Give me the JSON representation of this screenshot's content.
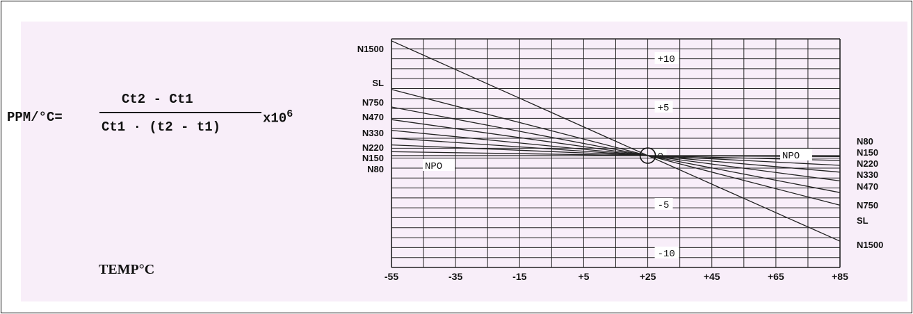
{
  "formula": {
    "lhs": "PPM/°C=",
    "numerator": "Ct2 - Ct1",
    "denominator": "Ct1 · (t2 - t1)",
    "multiplier": "x10",
    "exponent": "6"
  },
  "temp_label": "TEMP°C",
  "chart_data": {
    "type": "line",
    "x_ticks": [
      "-55",
      "-35",
      "-15",
      "+5",
      "+25",
      "+45",
      "+65",
      "+85"
    ],
    "x_tick_values": [
      -55,
      -35,
      -15,
      5,
      25,
      45,
      65,
      85
    ],
    "xlim": [
      -55,
      85
    ],
    "ylim": [
      -11.5,
      12
    ],
    "y_ticks": [
      {
        "value": 10,
        "label": "+10"
      },
      {
        "value": 5,
        "label": "+5"
      },
      {
        "value": 0,
        "label": "0"
      },
      {
        "value": -5,
        "label": "-5"
      },
      {
        "value": -10,
        "label": "-10"
      }
    ],
    "center_marker": {
      "x": 25,
      "y": 0
    },
    "series": [
      {
        "name": "N1500",
        "left_label": "N1500",
        "right_label": "N1500",
        "points": [
          [
            -55,
            11.8
          ],
          [
            25,
            0
          ],
          [
            85,
            -8.8
          ]
        ]
      },
      {
        "name": "SL",
        "left_label": "SL",
        "right_label": "SL",
        "points": [
          [
            -55,
            6.8
          ],
          [
            25,
            0
          ],
          [
            85,
            -5.1
          ]
        ]
      },
      {
        "name": "N750",
        "left_label": "N750",
        "right_label": "N750",
        "points": [
          [
            -55,
            5.0
          ],
          [
            25,
            0
          ],
          [
            85,
            -3.8
          ]
        ]
      },
      {
        "name": "N470",
        "left_label": "N470",
        "right_label": "N470",
        "points": [
          [
            -55,
            3.7
          ],
          [
            25,
            0
          ],
          [
            85,
            -2.6
          ]
        ]
      },
      {
        "name": "N330",
        "left_label": "N330",
        "right_label": "N330",
        "points": [
          [
            -55,
            2.6
          ],
          [
            25,
            0
          ],
          [
            85,
            -1.7
          ]
        ]
      },
      {
        "name": "N220",
        "left_label": "N220",
        "right_label": "N220",
        "points": [
          [
            -55,
            1.8
          ],
          [
            25,
            0
          ],
          [
            85,
            -1.0
          ]
        ]
      },
      {
        "name": "N150",
        "left_label": "N150",
        "right_label": "N150",
        "points": [
          [
            -55,
            1.1
          ],
          [
            25,
            0
          ],
          [
            85,
            -0.5
          ]
        ]
      },
      {
        "name": "N80",
        "left_label": "N80",
        "right_label": "N80",
        "points": [
          [
            -55,
            0.4
          ],
          [
            25,
            0
          ],
          [
            85,
            -0.1
          ]
        ]
      },
      {
        "name": "NPO",
        "left_label": "NPO",
        "right_label": "NPO",
        "points": [
          [
            -55,
            0
          ],
          [
            85,
            0
          ]
        ]
      }
    ]
  }
}
